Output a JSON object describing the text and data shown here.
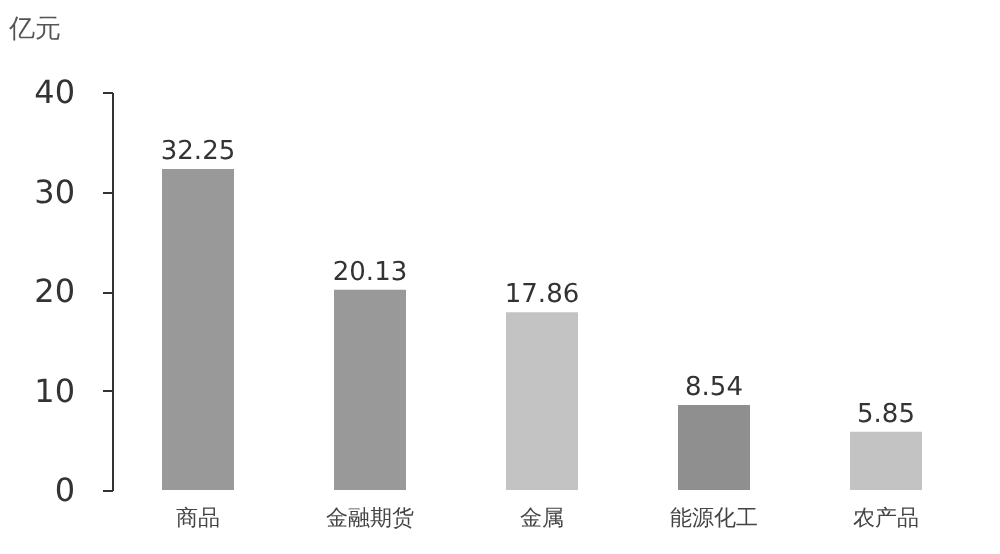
{
  "chart_data": {
    "type": "bar",
    "ylabel": "亿元",
    "categories": [
      "商品",
      "金融期货",
      "金属",
      "能源化工",
      "农产品"
    ],
    "values": [
      32.25,
      20.13,
      17.86,
      8.54,
      5.85
    ],
    "colors": [
      "#999999",
      "#999999",
      "#c3c3c3",
      "#8f8f8f",
      "#c3c3c3"
    ],
    "ylim": [
      0,
      40
    ],
    "yticks": [
      0,
      10,
      20,
      30,
      40
    ],
    "data_labels": true,
    "grid": false
  }
}
